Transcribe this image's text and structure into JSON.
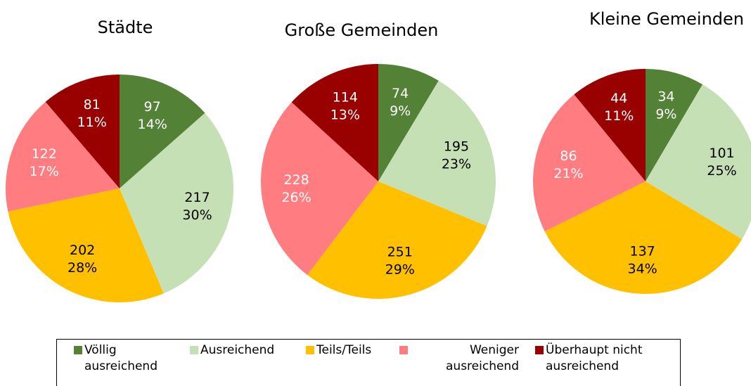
{
  "chart_data": [
    {
      "type": "pie",
      "title": "Städte",
      "values": [
        97,
        217,
        202,
        122,
        81
      ],
      "percent_labels": [
        "14%",
        "30%",
        "28%",
        "17%",
        "11%"
      ]
    },
    {
      "type": "pie",
      "title": "Große Gemeinden",
      "values": [
        74,
        195,
        251,
        228,
        114
      ],
      "percent_labels": [
        "9%",
        "23%",
        "29%",
        "26%",
        "13%"
      ]
    },
    {
      "type": "pie",
      "title": "Kleine Gemeinden",
      "values": [
        34,
        101,
        137,
        86,
        44
      ],
      "percent_labels": [
        "9%",
        "25%",
        "34%",
        "21%",
        "11%"
      ]
    }
  ],
  "legend": {
    "categories": [
      "Völlig ausreichend",
      "Ausreichend",
      "Teils/Teils",
      "Weniger ausreichend",
      "Überhaupt nicht ausreichend"
    ],
    "colors": [
      "#538135",
      "#c5e0b4",
      "#ffc000",
      "#ff7c80",
      "#990000"
    ]
  }
}
